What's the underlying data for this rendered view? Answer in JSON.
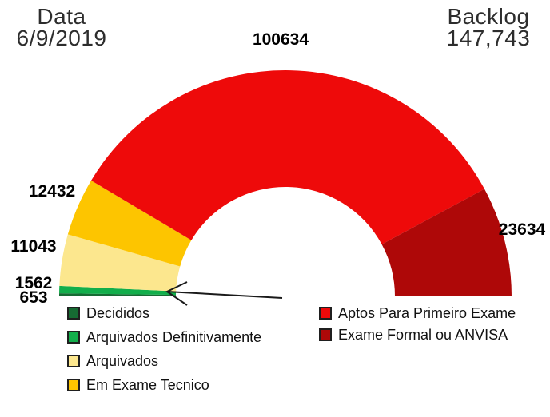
{
  "header": {
    "date_label": "Data",
    "date_value": "6/9/2019",
    "backlog_label": "Backlog",
    "backlog_value": "147,743"
  },
  "chart_data": {
    "type": "pie",
    "variant": "half-donut-gauge",
    "title": "",
    "start_angle_deg": 180,
    "end_angle_deg": 0,
    "legend_position": "bottom-two-columns",
    "slices": [
      {
        "label": "Decididos",
        "value": 653,
        "color": "#166B33"
      },
      {
        "label": "Arquivados Definitivamente",
        "value": 1562,
        "color": "#12AE4B"
      },
      {
        "label": "Arquivados",
        "value": 11043,
        "color": "#FCE78E"
      },
      {
        "label": "Em Exame Tecnico",
        "value": 12432,
        "color": "#FDC500"
      },
      {
        "label": "Aptos Para Primeiro Exame",
        "value": 100634,
        "color": "#EE0A0A"
      },
      {
        "label": "Exame Formal ou ANVISA",
        "value": 23634,
        "color": "#AE0808"
      }
    ],
    "annotations": [
      {
        "type": "arrow",
        "points_to": "thin green slices (Decididos / Arquivados Definitivamente)"
      }
    ]
  }
}
